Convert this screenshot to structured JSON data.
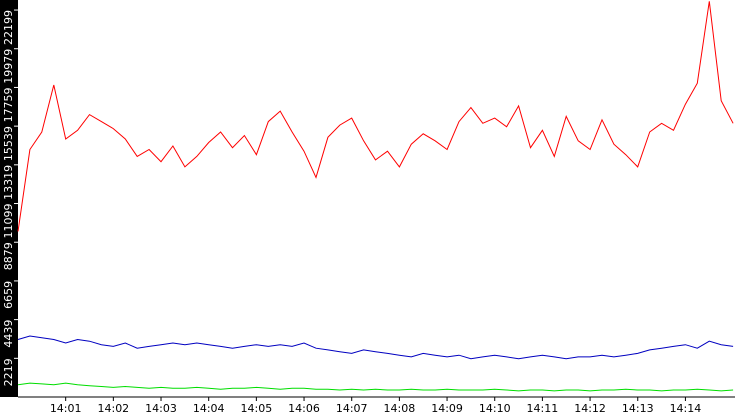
{
  "chart_data": {
    "type": "line",
    "x": [
      0,
      0.25,
      0.5,
      0.75,
      1,
      1.25,
      1.5,
      1.75,
      2,
      2.25,
      2.5,
      2.75,
      3,
      3.25,
      3.5,
      3.75,
      4,
      4.25,
      4.5,
      4.75,
      5,
      5.25,
      5.5,
      5.75,
      6,
      6.25,
      6.5,
      6.75,
      7,
      7.25,
      7.5,
      7.75,
      8,
      8.25,
      8.5,
      8.75,
      9,
      9.25,
      9.5,
      9.75,
      10,
      10.25,
      10.5,
      10.75,
      11,
      11.25,
      11.5,
      11.75,
      12,
      12.25,
      12.5,
      12.75,
      13,
      13.25,
      13.5,
      13.75,
      14,
      14.25,
      14.5,
      14.75,
      15
    ],
    "series": [
      {
        "name": "red",
        "color": "#ff0000",
        "values": [
          9500,
          14200,
          15200,
          17900,
          14800,
          15300,
          16200,
          15800,
          15400,
          14800,
          13800,
          14200,
          13500,
          14400,
          13200,
          13800,
          14600,
          15200,
          14300,
          15000,
          13900,
          15800,
          16400,
          15200,
          14100,
          12600,
          14900,
          15600,
          16000,
          14700,
          13600,
          14100,
          13200,
          14500,
          15100,
          14700,
          14200,
          15800,
          16600,
          15700,
          16000,
          15500,
          16700,
          14300,
          15300,
          13800,
          16100,
          14700,
          14200,
          15900,
          14500,
          13900,
          13200,
          15200,
          15700,
          15300,
          16800,
          18000,
          22700,
          17000,
          15700
        ]
      },
      {
        "name": "blue",
        "color": "#0000c0",
        "values": [
          3300,
          3500,
          3400,
          3300,
          3100,
          3300,
          3200,
          3000,
          2900,
          3100,
          2800,
          2900,
          3000,
          3100,
          3000,
          3100,
          3000,
          2900,
          2800,
          2900,
          3000,
          2900,
          3000,
          2900,
          3100,
          2800,
          2700,
          2600,
          2500,
          2700,
          2600,
          2500,
          2400,
          2300,
          2500,
          2400,
          2300,
          2400,
          2200,
          2300,
          2400,
          2300,
          2200,
          2300,
          2400,
          2300,
          2200,
          2300,
          2300,
          2400,
          2300,
          2400,
          2500,
          2700,
          2800,
          2900,
          3000,
          2800,
          3200,
          3000,
          2900
        ]
      },
      {
        "name": "green",
        "color": "#00dd00",
        "values": [
          700,
          800,
          750,
          700,
          800,
          700,
          650,
          600,
          550,
          600,
          550,
          500,
          550,
          500,
          500,
          550,
          500,
          450,
          500,
          500,
          550,
          500,
          450,
          500,
          500,
          450,
          450,
          400,
          450,
          400,
          450,
          400,
          400,
          450,
          400,
          400,
          450,
          400,
          400,
          400,
          450,
          400,
          350,
          400,
          400,
          350,
          400,
          400,
          350,
          400,
          400,
          450,
          400,
          400,
          350,
          400,
          400,
          450,
          400,
          350,
          400
        ]
      }
    ],
    "xlim": [
      0,
      15.04
    ],
    "xticks": [
      {
        "value": 1,
        "label": "14:01"
      },
      {
        "value": 2,
        "label": "14:02"
      },
      {
        "value": 3,
        "label": "14:03"
      },
      {
        "value": 4,
        "label": "14:04"
      },
      {
        "value": 5,
        "label": "14:05"
      },
      {
        "value": 6,
        "label": "14:06"
      },
      {
        "value": 7,
        "label": "14:07"
      },
      {
        "value": 8,
        "label": "14:08"
      },
      {
        "value": 9,
        "label": "14:09"
      },
      {
        "value": 10,
        "label": "14:10"
      },
      {
        "value": 11,
        "label": "14:11"
      },
      {
        "value": 12,
        "label": "14:12"
      },
      {
        "value": 13,
        "label": "14:13"
      },
      {
        "value": 14,
        "label": "14:14"
      }
    ],
    "ylim": [
      0,
      22775
    ],
    "yticks": [
      2219,
      4439,
      6659,
      8879,
      11099,
      13319,
      15539,
      17759,
      19979,
      22199
    ]
  }
}
